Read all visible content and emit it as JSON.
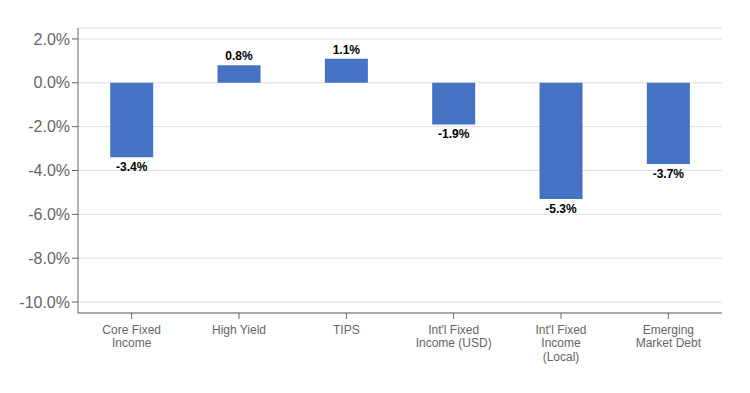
{
  "chart_data": {
    "type": "bar",
    "categories": [
      "Core Fixed\nIncome",
      "High Yield",
      "TIPS",
      "Int'l Fixed\nIncome (USD)",
      "Int'l Fixed\nIncome\n(Local)",
      "Emerging\nMarket Debt"
    ],
    "values": [
      -3.4,
      0.8,
      1.1,
      -1.9,
      -5.3,
      -3.7
    ],
    "value_labels": [
      "-3.4%",
      "0.8%",
      "1.1%",
      "-1.9%",
      "-5.3%",
      "-3.7%"
    ],
    "data_labels": true,
    "color": "#4472C4",
    "ylim": [
      -10.5,
      2.5
    ],
    "yticks": [
      {
        "value": 2.0,
        "label": "2.0%"
      },
      {
        "value": 0.0,
        "label": "0.0%"
      },
      {
        "value": -2.0,
        "label": "-2.0%"
      },
      {
        "value": -4.0,
        "label": "-4.0%"
      },
      {
        "value": -6.0,
        "label": "-6.0%"
      },
      {
        "value": -8.0,
        "label": "-8.0%"
      },
      {
        "value": -10.0,
        "label": "-10.0%"
      }
    ],
    "grid": true
  }
}
